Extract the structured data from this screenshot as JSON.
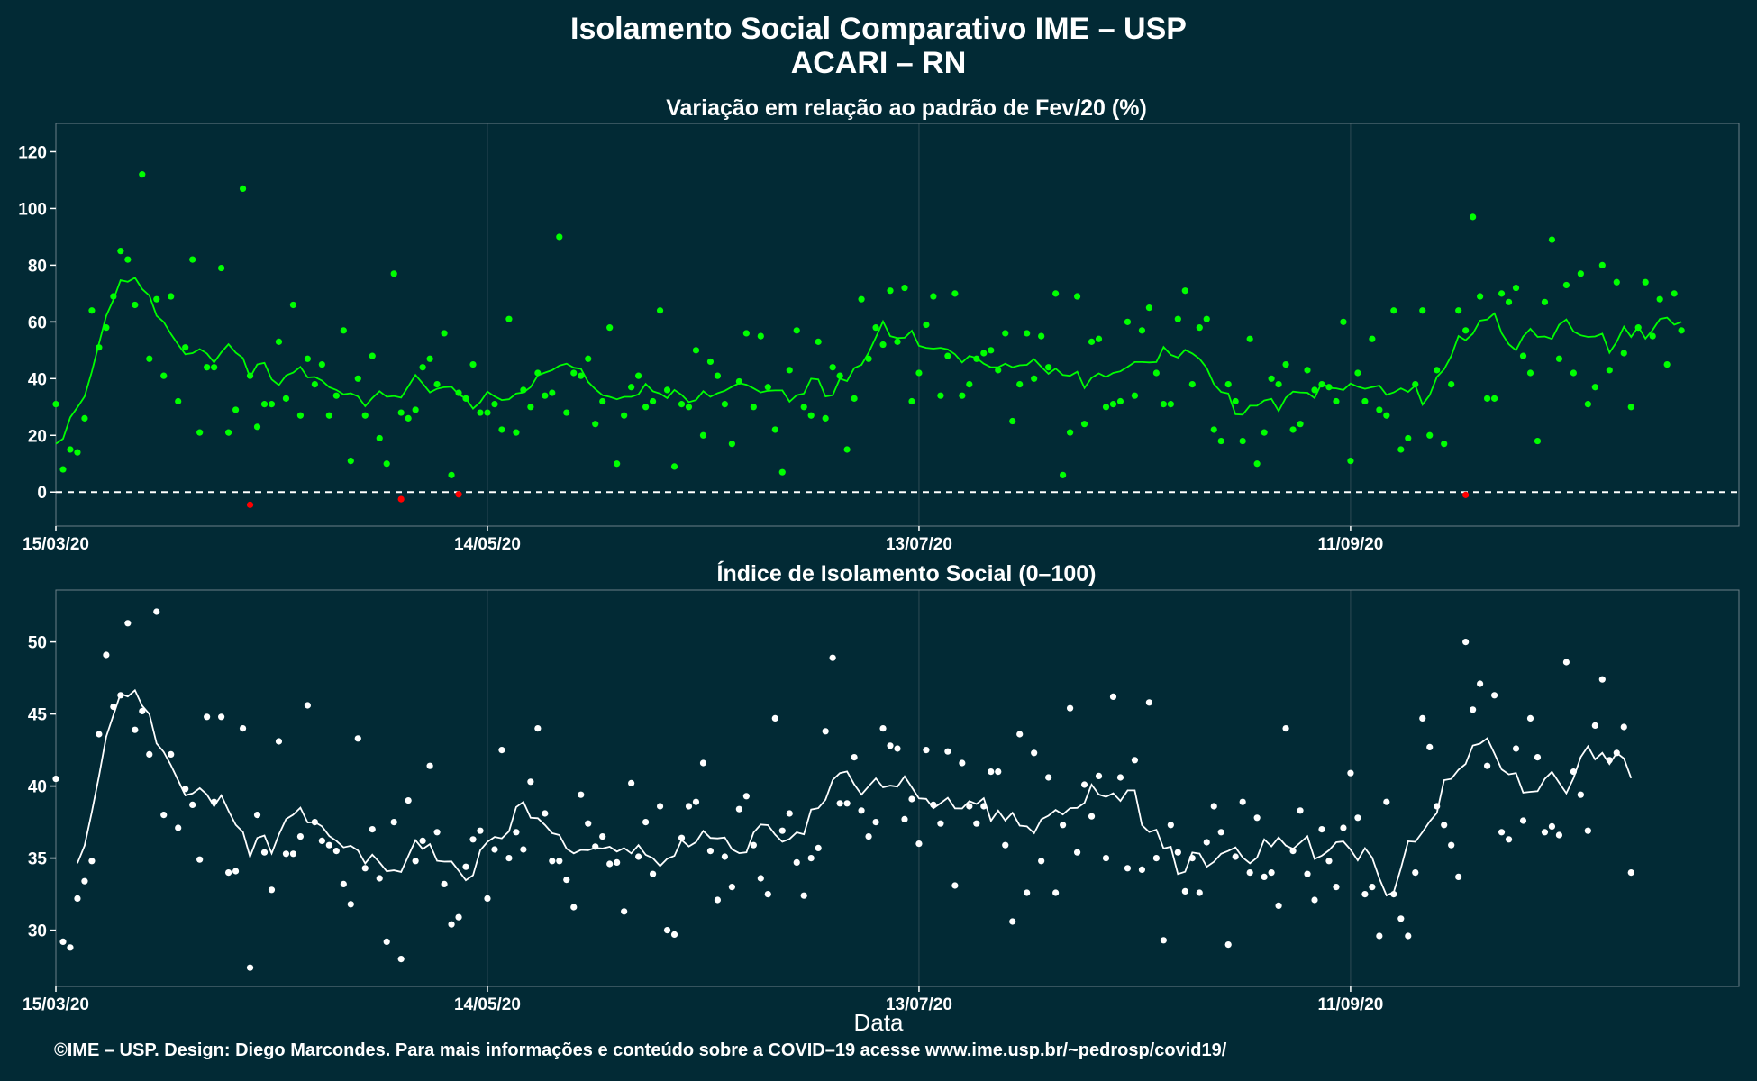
{
  "header": {
    "title": "Isolamento Social Comparativo IME – USP",
    "subtitle": "ACARI – RN"
  },
  "footer": "©IME – USP. Design: Diego Marcondes. Para mais informações e conteúdo sobre a COVID–19 acesse www.ime.usp.br/~pedrosp/covid19/",
  "colors": {
    "background": "#022a35",
    "panel_border": "#6b7f86",
    "grid": "#2e4a54",
    "positive": "#00ff00",
    "negative": "#ff0000",
    "index": "#ffffff"
  },
  "chart_data": [
    {
      "type": "scatter",
      "title": "Variação em relação ao padrão de Fev/20 (%)",
      "xlabel": "",
      "ylabel": "",
      "x_ticks": [
        "15/03/20",
        "14/05/20",
        "13/07/20",
        "11/09/20"
      ],
      "x_tick_days": [
        0,
        60,
        120,
        180
      ],
      "x_range_days": [
        0,
        234
      ],
      "ylim": [
        -12,
        130
      ],
      "y_ticks": [
        0,
        20,
        40,
        60,
        80,
        100,
        120
      ],
      "reference_line": 0,
      "negative_points": [
        {
          "day": 27,
          "value": -4.5
        },
        {
          "day": 48,
          "value": -2.5
        },
        {
          "day": 56,
          "value": -0.8
        },
        {
          "day": 196,
          "value": -1
        }
      ],
      "points": [
        31,
        8,
        15,
        14,
        26,
        64,
        51,
        58,
        69,
        85,
        82,
        66,
        112,
        47,
        68,
        41,
        69,
        32,
        51,
        82,
        21,
        44,
        44,
        79,
        21,
        29,
        107,
        41,
        23,
        31,
        31,
        53,
        33,
        66,
        27,
        47,
        38,
        45,
        27,
        34,
        57,
        11,
        40,
        27,
        48,
        19,
        10,
        77,
        28,
        26,
        29,
        44,
        47,
        38,
        56,
        6,
        35,
        33,
        45,
        28,
        28,
        31,
        22,
        61,
        21,
        36,
        30,
        42,
        34,
        35,
        90,
        28,
        42,
        41,
        47,
        24,
        32,
        58,
        10,
        27,
        37,
        41,
        30,
        32,
        64,
        36,
        9,
        31,
        30,
        50,
        20,
        46,
        41,
        31,
        17,
        39,
        56,
        30,
        55,
        37,
        22,
        7,
        43,
        57,
        30,
        27,
        53,
        26,
        44,
        41,
        15,
        33,
        68,
        47,
        58,
        52,
        71,
        53,
        72,
        32,
        42,
        59,
        69,
        34,
        48,
        70,
        34,
        38,
        47,
        49,
        50,
        43,
        56,
        25,
        38,
        56,
        40,
        55,
        44,
        70,
        6,
        21,
        69,
        24,
        53,
        54,
        30,
        31,
        32,
        60,
        34,
        57,
        65,
        42,
        31,
        31,
        61,
        71,
        38,
        58,
        61,
        22,
        18,
        38,
        32,
        18,
        54,
        10,
        21,
        40,
        38,
        45,
        22,
        24,
        43,
        36,
        38,
        37,
        32,
        60,
        11,
        42,
        32,
        54,
        29,
        27,
        64,
        15,
        19,
        38,
        64,
        20,
        43,
        17,
        38,
        64,
        57,
        97,
        69,
        33,
        33,
        70,
        67,
        72,
        48,
        42,
        18,
        67,
        89,
        47,
        73,
        42,
        77,
        31,
        37,
        80,
        43,
        74,
        49,
        30,
        58,
        74,
        55,
        68,
        45,
        70,
        57
      ]
    },
    {
      "type": "scatter",
      "title": "Índice de Isolamento Social (0–100)",
      "xlabel": "Data",
      "ylabel": "",
      "x_ticks": [
        "15/03/20",
        "14/05/20",
        "13/07/20",
        "11/09/20"
      ],
      "x_tick_days": [
        0,
        60,
        120,
        180
      ],
      "x_range_days": [
        0,
        234
      ],
      "ylim": [
        26.1,
        53.6
      ],
      "y_ticks": [
        30,
        35,
        40,
        45,
        50
      ],
      "points": [
        40.5,
        29.2,
        28.8,
        32.2,
        33.4,
        34.8,
        43.6,
        49.1,
        45.5,
        46.3,
        51.3,
        43.9,
        45.2,
        42.2,
        52.1,
        38.0,
        42.2,
        37.1,
        39.8,
        38.7,
        34.9,
        44.8,
        38.9,
        44.8,
        34.0,
        34.1,
        44.0,
        27.4,
        38.0,
        35.4,
        32.8,
        43.1,
        35.3,
        35.3,
        36.5,
        45.6,
        37.5,
        36.2,
        35.9,
        35.5,
        33.2,
        31.8,
        43.3,
        34.3,
        37.0,
        33.6,
        29.2,
        37.5,
        28.0,
        39.0,
        34.8,
        36.2,
        41.4,
        36.8,
        33.2,
        30.4,
        30.9,
        34.4,
        36.3,
        36.9,
        32.2,
        35.6,
        42.5,
        35.0,
        36.8,
        35.6,
        40.3,
        44.0,
        38.1,
        34.8,
        34.8,
        33.5,
        31.6,
        39.4,
        37.4,
        35.8,
        36.5,
        34.6,
        34.7,
        31.3,
        40.2,
        35.1,
        37.5,
        33.9,
        38.6,
        30.0,
        29.7,
        36.4,
        38.6,
        38.9,
        41.6,
        35.5,
        32.1,
        35.1,
        33.0,
        38.4,
        39.3,
        35.9,
        33.6,
        32.5,
        44.7,
        36.9,
        38.1,
        34.7,
        32.4,
        35.0,
        35.7,
        43.8,
        48.9,
        38.8,
        38.8,
        42.0,
        38.3,
        36.5,
        37.5,
        44.0,
        42.8,
        42.6,
        37.7,
        39.1,
        36.0,
        42.5,
        38.7,
        37.4,
        42.4,
        33.1,
        41.6,
        38.6,
        37.4,
        38.6,
        41.0,
        41.0,
        35.9,
        30.6,
        43.6,
        32.6,
        42.3,
        34.8,
        40.6,
        32.6,
        37.3,
        45.4,
        35.4,
        40.1,
        37.9,
        40.7,
        35.0,
        46.2,
        40.6,
        34.3,
        41.8,
        34.2,
        45.8,
        35.0,
        29.3,
        37.3,
        35.4,
        32.7,
        35.0,
        32.6,
        36.1,
        38.6,
        36.8,
        29.0,
        35.1,
        38.9,
        34.0,
        37.8,
        33.7,
        34.0,
        31.7,
        44.0,
        35.5,
        38.3,
        33.9,
        32.1,
        37.0,
        34.8,
        33.0,
        37.1,
        40.9,
        37.8,
        32.5,
        33.0,
        29.6,
        38.9,
        32.5,
        30.8,
        29.6,
        34.0,
        44.7,
        42.7,
        38.6,
        37.3,
        35.9,
        33.7,
        50.0,
        45.3,
        47.1,
        41.4,
        46.3,
        36.8,
        36.3,
        42.6,
        37.6,
        44.7,
        42.0,
        36.8,
        37.2,
        36.6,
        48.6,
        41.0,
        39.4,
        36.9,
        44.2,
        47.4,
        41.8,
        42.3,
        44.1,
        34.0
      ]
    }
  ]
}
